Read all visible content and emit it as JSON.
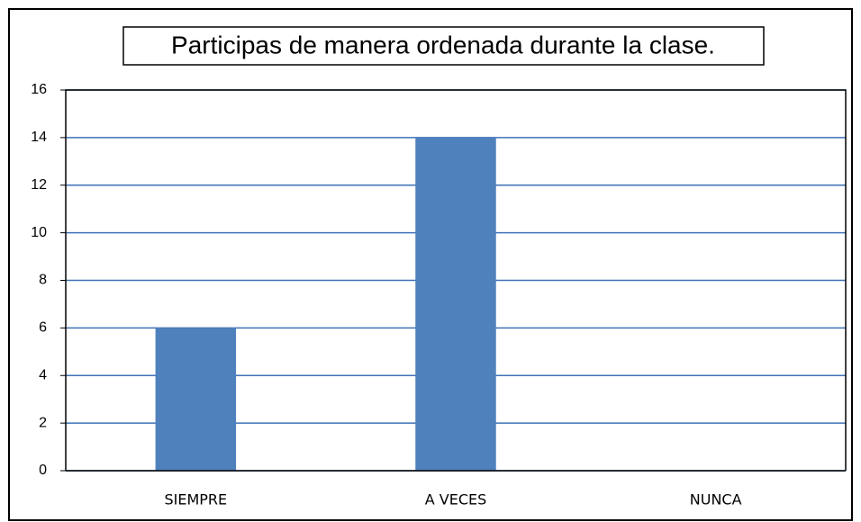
{
  "chart_data": {
    "type": "bar",
    "title": "Participas de manera ordenada durante la clase.",
    "categories": [
      "SIEMPRE",
      "A VECES",
      "NUNCA"
    ],
    "values": [
      6,
      14,
      0
    ],
    "color": "#4f81bd",
    "ylim": [
      0,
      16
    ],
    "yticks": [
      0,
      2,
      4,
      6,
      8,
      10,
      12,
      14,
      16
    ],
    "grid": true,
    "grid_color": "#3f72b8"
  }
}
